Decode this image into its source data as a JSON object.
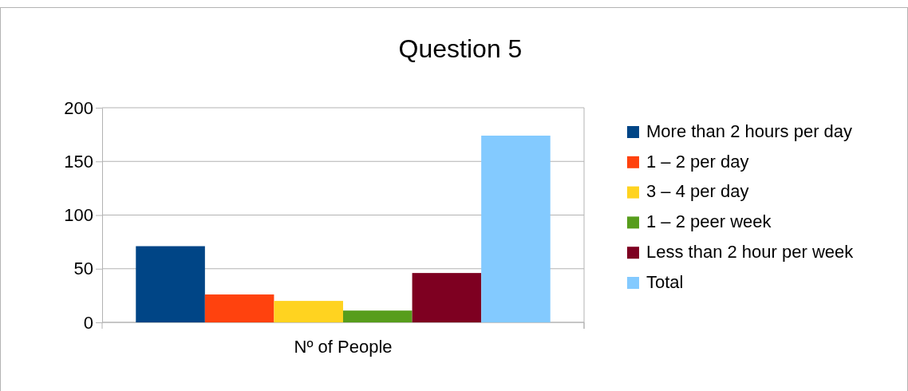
{
  "chart_data": {
    "type": "bar",
    "title": "Question 5",
    "categories": [
      "Nº of People"
    ],
    "series": [
      {
        "name": "More than 2 hours per day",
        "color": "#004586",
        "values": [
          71
        ]
      },
      {
        "name": "1 – 2 per day",
        "color": "#ff420e",
        "values": [
          26
        ]
      },
      {
        "name": "3 – 4 per day",
        "color": "#ffd320",
        "values": [
          20
        ]
      },
      {
        "name": "1 – 2 peer week",
        "color": "#579d1c",
        "values": [
          11
        ]
      },
      {
        "name": "Less than 2 hour per week",
        "color": "#7e0021",
        "values": [
          46
        ]
      },
      {
        "name": "Total",
        "color": "#83caff",
        "values": [
          174
        ]
      }
    ],
    "ylim": [
      0,
      200
    ],
    "yticks": [
      0,
      50,
      100,
      150,
      200
    ],
    "grid": "y",
    "legend": "right"
  }
}
